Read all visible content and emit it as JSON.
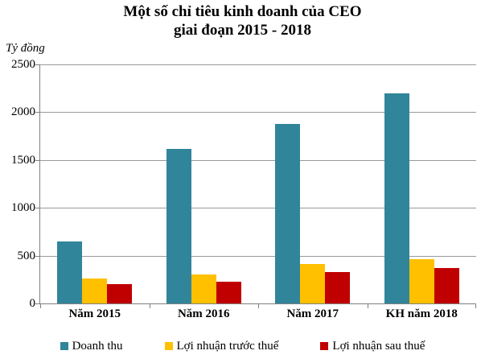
{
  "chart_data": {
    "type": "bar",
    "title": "Một số chỉ tiêu kinh doanh của CEO",
    "subtitle": "giai đoạn 2015 - 2018",
    "ylabel": "Tỷ đồng",
    "categories": [
      "Năm 2015",
      "Năm 2016",
      "Năm 2017",
      "KH năm 2018"
    ],
    "series": [
      {
        "key": "doanh-thu",
        "name": "Doanh thu",
        "color": "#31859B",
        "values": [
          650,
          1620,
          1875,
          2200
        ]
      },
      {
        "key": "loi-nhuan-truoc-thue",
        "name": "Lợi nhuận trước thuế",
        "color": "#FFC000",
        "values": [
          265,
          300,
          410,
          465
        ]
      },
      {
        "key": "loi-nhuan-sau-thue",
        "name": "Lợi nhuận sau thuế",
        "color": "#C00000",
        "values": [
          200,
          230,
          325,
          370
        ]
      }
    ],
    "ylim": [
      0,
      2500
    ],
    "yticks": [
      0,
      500,
      1000,
      1500,
      2000,
      2500
    ],
    "grid": true,
    "legend_position": "bottom",
    "colors": {
      "axis": "#808080",
      "gridline": "#9a9a9a",
      "background": "#ffffff",
      "text": "#000000"
    }
  }
}
